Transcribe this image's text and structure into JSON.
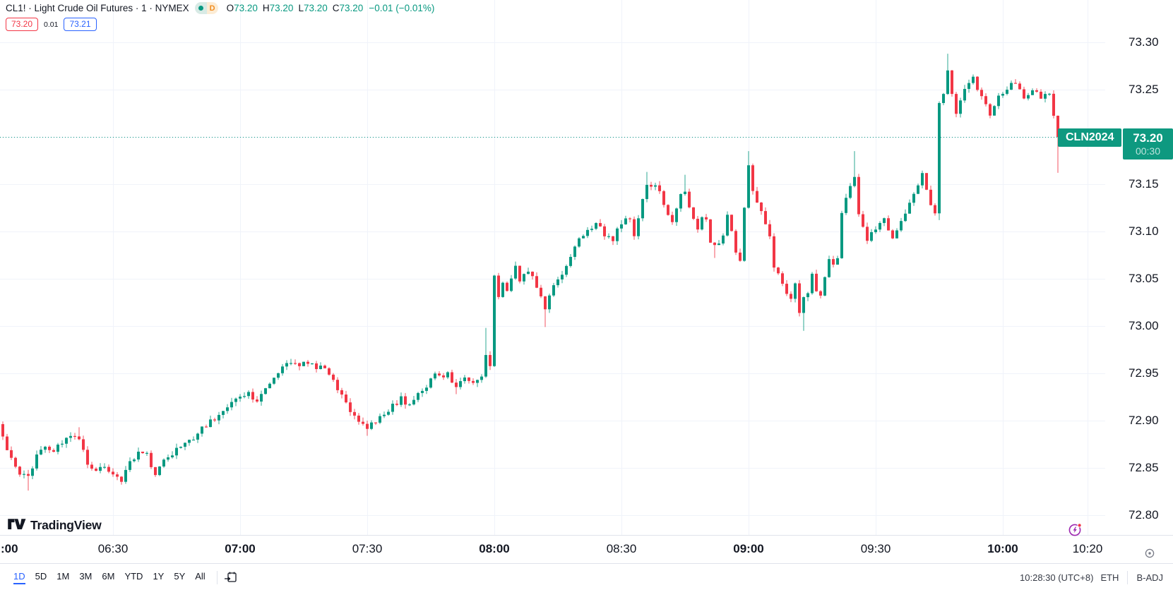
{
  "header": {
    "symbol_title": "CL1! · Light Crude Oil Futures · 1 · NYMEX",
    "timeframe_badge": "D",
    "ohlc_items": [
      {
        "k": "O",
        "v": "73.20"
      },
      {
        "k": "H",
        "v": "73.20"
      },
      {
        "k": "L",
        "v": "73.20"
      },
      {
        "k": "C",
        "v": "73.20"
      }
    ],
    "change": "−0.01 (−0.01%)",
    "bid": "73.20",
    "spread": "0.01",
    "ask": "73.21"
  },
  "logo": {
    "text": "TradingView"
  },
  "toolbar": {
    "ranges": [
      {
        "label": "1D",
        "active": true
      },
      {
        "label": "5D"
      },
      {
        "label": "1M"
      },
      {
        "label": "3M"
      },
      {
        "label": "6M"
      },
      {
        "label": "YTD"
      },
      {
        "label": "1Y"
      },
      {
        "label": "5Y"
      },
      {
        "label": "All"
      }
    ],
    "clock": "10:28:30 (UTC+8)",
    "session": "ETH",
    "adjustment": "B-ADJ"
  },
  "chart_data": {
    "type": "candlestick",
    "symbol": "CL1!",
    "title": "Light Crude Oil Futures, 1 minute, NYMEX",
    "interval_minutes": 1,
    "contract_label": "CLN2024",
    "current_price": "73.20",
    "countdown": "00:30",
    "first_open": 72.905,
    "y_axis": {
      "min": 72.78,
      "max": 73.31,
      "tick_step": 0.05,
      "ticks": [
        "73.30",
        "73.25",
        "73.20",
        "73.15",
        "73.10",
        "73.05",
        "73.00",
        "72.95",
        "72.90",
        "72.85",
        "72.80"
      ]
    },
    "x_axis_labels": [
      {
        "text": ":00",
        "minute": 0,
        "bold": true,
        "edge": true
      },
      {
        "text": "06:30",
        "minute": 30
      },
      {
        "text": "07:00",
        "minute": 60,
        "bold": true
      },
      {
        "text": "07:30",
        "minute": 90
      },
      {
        "text": "08:00",
        "minute": 120,
        "bold": true
      },
      {
        "text": "08:30",
        "minute": 150
      },
      {
        "text": "09:00",
        "minute": 180,
        "bold": true
      },
      {
        "text": "09:30",
        "minute": 210
      },
      {
        "text": "10:00",
        "minute": 240,
        "bold": true
      },
      {
        "text": "10:20",
        "minute": 260
      }
    ],
    "price_path": [
      [
        3,
        72.895
      ],
      [
        4,
        72.885
      ],
      [
        5,
        72.868
      ],
      [
        6,
        72.858
      ],
      [
        8,
        72.846
      ],
      [
        10,
        72.84
      ],
      [
        12,
        72.862
      ],
      [
        14,
        72.872
      ],
      [
        16,
        72.867
      ],
      [
        18,
        72.878
      ],
      [
        20,
        72.886
      ],
      [
        22,
        72.878
      ],
      [
        24,
        72.856
      ],
      [
        26,
        72.848
      ],
      [
        28,
        72.852
      ],
      [
        30,
        72.846
      ],
      [
        32,
        72.838
      ],
      [
        34,
        72.858
      ],
      [
        36,
        72.866
      ],
      [
        38,
        72.868
      ],
      [
        40,
        72.84
      ],
      [
        42,
        72.86
      ],
      [
        44,
        72.866
      ],
      [
        46,
        72.872
      ],
      [
        48,
        72.878
      ],
      [
        50,
        72.888
      ],
      [
        52,
        72.896
      ],
      [
        54,
        72.902
      ],
      [
        56,
        72.908
      ],
      [
        58,
        72.918
      ],
      [
        60,
        72.926
      ],
      [
        62,
        72.93
      ],
      [
        64,
        72.92
      ],
      [
        66,
        72.934
      ],
      [
        68,
        72.948
      ],
      [
        70,
        72.956
      ],
      [
        73,
        72.962
      ],
      [
        76,
        72.958
      ],
      [
        80,
        72.956
      ],
      [
        82,
        72.94
      ],
      [
        84,
        72.928
      ],
      [
        86,
        72.912
      ],
      [
        88,
        72.9
      ],
      [
        90,
        72.892
      ],
      [
        92,
        72.898
      ],
      [
        94,
        72.908
      ],
      [
        96,
        72.915
      ],
      [
        98,
        72.924
      ],
      [
        100,
        72.916
      ],
      [
        102,
        72.93
      ],
      [
        104,
        72.938
      ],
      [
        106,
        72.948
      ],
      [
        109,
        72.948
      ],
      [
        111,
        72.936
      ],
      [
        113,
        72.946
      ],
      [
        115,
        72.94
      ],
      [
        117,
        72.948
      ],
      [
        118,
        72.972
      ],
      [
        119,
        72.958
      ],
      [
        120,
        73.052
      ],
      [
        121,
        73.032
      ],
      [
        122,
        73.048
      ],
      [
        123,
        73.035
      ],
      [
        124,
        73.052
      ],
      [
        125,
        73.062
      ],
      [
        126,
        73.048
      ],
      [
        128,
        73.058
      ],
      [
        130,
        73.042
      ],
      [
        132,
        73.018
      ],
      [
        134,
        73.042
      ],
      [
        136,
        73.055
      ],
      [
        138,
        73.075
      ],
      [
        140,
        73.092
      ],
      [
        142,
        73.102
      ],
      [
        144,
        73.108
      ],
      [
        146,
        73.098
      ],
      [
        148,
        73.092
      ],
      [
        150,
        73.108
      ],
      [
        152,
        73.115
      ],
      [
        153,
        73.098
      ],
      [
        155,
        73.135
      ],
      [
        156,
        73.148
      ],
      [
        158,
        73.152
      ],
      [
        160,
        73.128
      ],
      [
        162,
        73.112
      ],
      [
        164,
        73.138
      ],
      [
        165,
        73.142
      ],
      [
        166,
        73.128
      ],
      [
        167,
        73.112
      ],
      [
        168,
        73.105
      ],
      [
        169,
        73.118
      ],
      [
        170,
        73.11
      ],
      [
        171,
        73.088
      ],
      [
        172,
        73.085
      ],
      [
        174,
        73.095
      ],
      [
        175,
        73.118
      ],
      [
        176,
        73.102
      ],
      [
        177,
        73.075
      ],
      [
        178,
        73.072
      ],
      [
        179,
        73.122
      ],
      [
        180,
        73.168
      ],
      [
        181,
        73.14
      ],
      [
        183,
        73.122
      ],
      [
        185,
        73.098
      ],
      [
        186,
        73.065
      ],
      [
        188,
        73.045
      ],
      [
        190,
        73.028
      ],
      [
        191,
        73.042
      ],
      [
        192,
        73.012
      ],
      [
        193,
        73.028
      ],
      [
        194,
        73.034
      ],
      [
        195,
        73.055
      ],
      [
        196,
        73.038
      ],
      [
        197,
        73.032
      ],
      [
        198,
        73.05
      ],
      [
        199,
        73.072
      ],
      [
        200,
        73.066
      ],
      [
        201,
        73.072
      ],
      [
        202,
        73.118
      ],
      [
        204,
        73.148
      ],
      [
        205,
        73.158
      ],
      [
        206,
        73.118
      ],
      [
        208,
        73.092
      ],
      [
        210,
        73.102
      ],
      [
        212,
        73.112
      ],
      [
        214,
        73.092
      ],
      [
        216,
        73.108
      ],
      [
        218,
        73.128
      ],
      [
        220,
        73.15
      ],
      [
        221,
        73.162
      ],
      [
        222,
        73.145
      ],
      [
        223,
        73.128
      ],
      [
        224,
        73.122
      ],
      [
        225,
        73.235
      ],
      [
        226,
        73.248
      ],
      [
        227,
        73.268
      ],
      [
        228,
        73.245
      ],
      [
        229,
        73.225
      ],
      [
        231,
        73.252
      ],
      [
        233,
        73.262
      ],
      [
        235,
        73.242
      ],
      [
        237,
        73.225
      ],
      [
        239,
        73.242
      ],
      [
        241,
        73.252
      ],
      [
        243,
        73.258
      ],
      [
        245,
        73.242
      ],
      [
        247,
        73.252
      ],
      [
        249,
        73.238
      ],
      [
        251,
        73.248
      ],
      [
        252,
        73.225
      ],
      [
        253,
        73.2
      ]
    ],
    "wick_overrides": {
      "10": {
        "low": 72.826
      },
      "22": {
        "high": 72.893
      },
      "90": {
        "low": 72.884
      },
      "111": {
        "low": 72.928
      },
      "118": {
        "high": 72.998
      },
      "132": {
        "low": 72.999
      },
      "156": {
        "high": 73.163
      },
      "165": {
        "high": 73.16
      },
      "172": {
        "low": 73.072
      },
      "180": {
        "high": 73.185
      },
      "193": {
        "low": 72.995
      },
      "205": {
        "high": 73.185
      },
      "225": {
        "low": 73.112
      },
      "227": {
        "high": 73.288
      },
      "253": {
        "low": 73.162,
        "close": 73.2
      }
    },
    "colors": {
      "up": "#089981",
      "down": "#f23645",
      "grid": "#f0f3fa",
      "axis_text": "#131722",
      "price_label_bg": "#0e9980",
      "accent_blue": "#2962ff",
      "alert_purple": "#9c27b0",
      "alert_dot_red": "#f23645"
    }
  }
}
